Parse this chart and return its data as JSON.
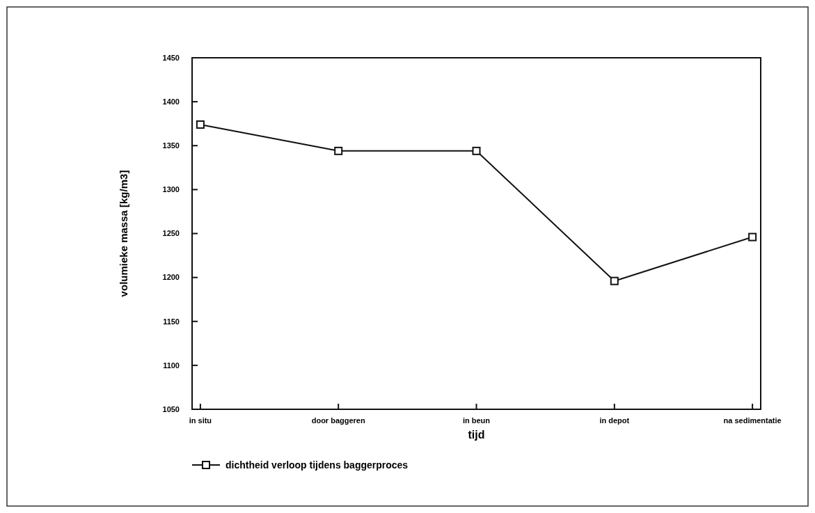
{
  "chart_data": {
    "type": "line",
    "xlabel": "tijd",
    "ylabel": "volumieke massa [kg/m3]",
    "categories": [
      "in situ",
      "door baggeren",
      "in beun",
      "in depot",
      "na sedimentatie"
    ],
    "series": [
      {
        "name": "dichtheid verloop tijdens baggerproces",
        "color": "#111111",
        "values": [
          1374,
          1344,
          1344,
          1196,
          1246
        ]
      }
    ],
    "ylim": [
      1050,
      1450
    ],
    "yticks": [
      1050,
      1100,
      1150,
      1200,
      1250,
      1300,
      1350,
      1400,
      1450
    ],
    "marker": "square",
    "legend": "bottom left",
    "grid": false,
    "line_style": "solid"
  }
}
